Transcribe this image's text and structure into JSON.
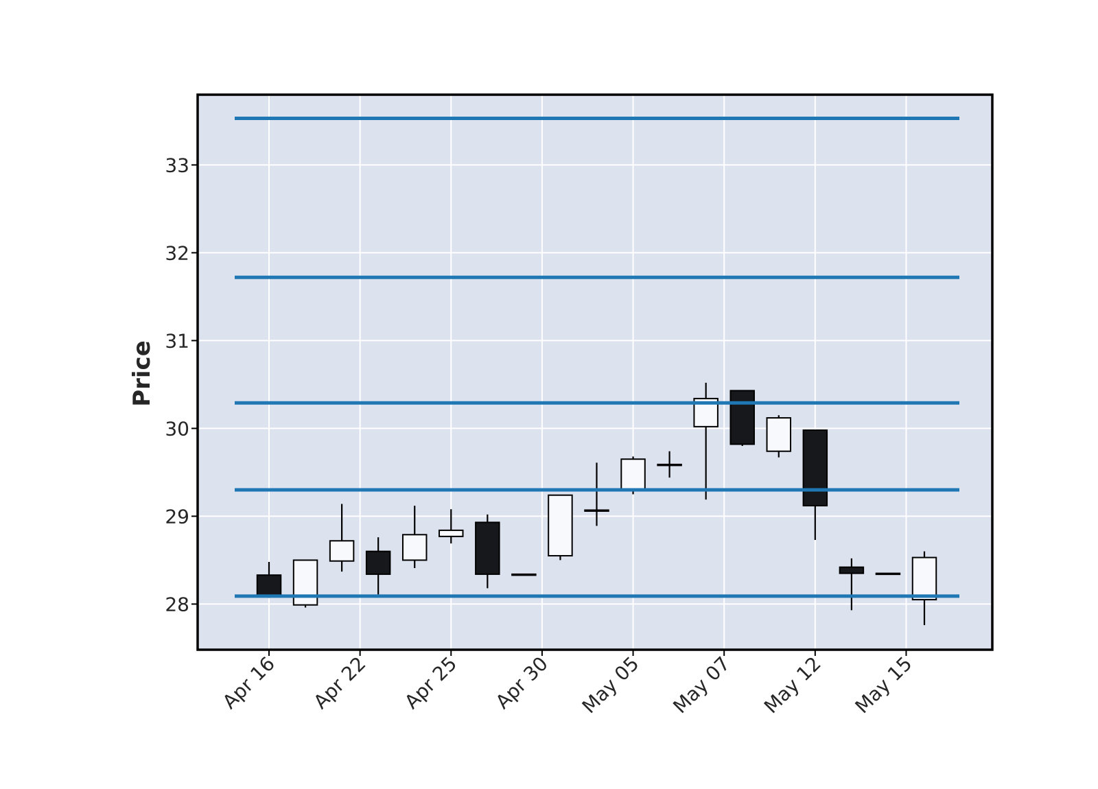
{
  "chart_data": {
    "type": "candlestick",
    "title": "",
    "xlabel": "",
    "ylabel": "Price",
    "ylim": [
      27.48,
      33.8
    ],
    "yticks": [
      28,
      29,
      30,
      31,
      32,
      33
    ],
    "grid": true,
    "colors": {
      "background": "#dde2ef",
      "grid": "#ffffff",
      "up_fill": "#f8f9fc",
      "down_fill": "#17181b",
      "edge": "#000000",
      "hline": "#1f77b4"
    },
    "xtick_labels": [
      {
        "label": "Apr 16",
        "index": 0
      },
      {
        "label": "Apr 22",
        "index": 2.5
      },
      {
        "label": "Apr 25",
        "index": 5
      },
      {
        "label": "Apr 30",
        "index": 7.5
      },
      {
        "label": "May 05",
        "index": 10
      },
      {
        "label": "May 07",
        "index": 12.5
      },
      {
        "label": "May 12",
        "index": 15
      },
      {
        "label": "May 15",
        "index": 17.5
      }
    ],
    "candles": [
      {
        "open": 28.33,
        "high": 28.48,
        "low": 28.07,
        "close": 28.1
      },
      {
        "open": 27.99,
        "high": 28.5,
        "low": 27.96,
        "close": 28.5
      },
      {
        "open": 28.49,
        "high": 29.14,
        "low": 28.37,
        "close": 28.72
      },
      {
        "open": 28.6,
        "high": 28.76,
        "low": 28.11,
        "close": 28.34
      },
      {
        "open": 28.5,
        "high": 29.12,
        "low": 28.41,
        "close": 28.79
      },
      {
        "open": 28.77,
        "high": 29.08,
        "low": 28.69,
        "close": 28.84
      },
      {
        "open": 28.93,
        "high": 29.02,
        "low": 28.18,
        "close": 28.34
      },
      {
        "open": 28.34,
        "high": 28.34,
        "low": 28.34,
        "close": 28.34
      },
      {
        "open": 28.55,
        "high": 29.24,
        "low": 28.5,
        "close": 29.24
      },
      {
        "open": 29.07,
        "high": 29.61,
        "low": 28.89,
        "close": 29.07
      },
      {
        "open": 29.3,
        "high": 29.68,
        "low": 29.25,
        "close": 29.65
      },
      {
        "open": 29.58,
        "high": 29.74,
        "low": 29.44,
        "close": 29.59
      },
      {
        "open": 30.02,
        "high": 30.52,
        "low": 29.19,
        "close": 30.34
      },
      {
        "open": 30.43,
        "high": 30.43,
        "low": 29.8,
        "close": 29.82
      },
      {
        "open": 29.74,
        "high": 30.15,
        "low": 29.67,
        "close": 30.12
      },
      {
        "open": 29.98,
        "high": 29.98,
        "low": 28.73,
        "close": 29.12
      },
      {
        "open": 28.42,
        "high": 28.52,
        "low": 27.93,
        "close": 28.35
      },
      {
        "open": 28.35,
        "high": 28.35,
        "low": 28.35,
        "close": 28.35
      },
      {
        "open": 28.05,
        "high": 28.6,
        "low": 27.76,
        "close": 28.53
      }
    ],
    "hlines": [
      28.09,
      29.3,
      30.29,
      31.72,
      33.53
    ]
  }
}
